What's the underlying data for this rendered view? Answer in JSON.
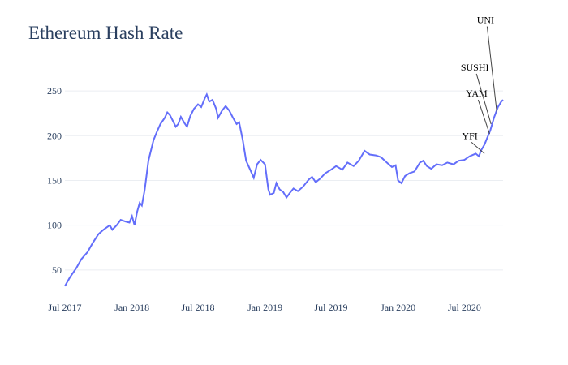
{
  "chart_data": {
    "type": "line",
    "title": "Ethereum Hash Rate",
    "xlabel": "",
    "ylabel": "",
    "x_range": [
      "2017-07-01",
      "2020-10-15"
    ],
    "ylim": [
      20,
      270
    ],
    "grid": true,
    "line_color": "#636efa",
    "x_ticks": [
      {
        "date": "2017-07-01",
        "label": "Jul 2017"
      },
      {
        "date": "2018-01-01",
        "label": "Jan 2018"
      },
      {
        "date": "2018-07-01",
        "label": "Jul 2018"
      },
      {
        "date": "2019-01-01",
        "label": "Jan 2019"
      },
      {
        "date": "2019-07-01",
        "label": "Jul 2019"
      },
      {
        "date": "2020-01-01",
        "label": "Jan 2020"
      },
      {
        "date": "2020-07-01",
        "label": "Jul 2020"
      }
    ],
    "y_ticks": [
      50,
      100,
      150,
      200,
      250
    ],
    "series": [
      {
        "points": [
          [
            "2017-07-01",
            32
          ],
          [
            "2017-07-15",
            42
          ],
          [
            "2017-08-01",
            52
          ],
          [
            "2017-08-15",
            62
          ],
          [
            "2017-09-01",
            70
          ],
          [
            "2017-09-15",
            80
          ],
          [
            "2017-10-01",
            90
          ],
          [
            "2017-10-15",
            95
          ],
          [
            "2017-11-01",
            100
          ],
          [
            "2017-11-08",
            95
          ],
          [
            "2017-11-20",
            100
          ],
          [
            "2017-12-01",
            106
          ],
          [
            "2017-12-15",
            104
          ],
          [
            "2017-12-25",
            103
          ],
          [
            "2018-01-01",
            110
          ],
          [
            "2018-01-08",
            100
          ],
          [
            "2018-01-15",
            115
          ],
          [
            "2018-01-22",
            125
          ],
          [
            "2018-01-28",
            122
          ],
          [
            "2018-02-05",
            140
          ],
          [
            "2018-02-15",
            172
          ],
          [
            "2018-03-01",
            195
          ],
          [
            "2018-03-10",
            204
          ],
          [
            "2018-03-20",
            213
          ],
          [
            "2018-04-01",
            220
          ],
          [
            "2018-04-08",
            226
          ],
          [
            "2018-04-15",
            223
          ],
          [
            "2018-04-25",
            215
          ],
          [
            "2018-05-01",
            210
          ],
          [
            "2018-05-08",
            213
          ],
          [
            "2018-05-15",
            221
          ],
          [
            "2018-05-25",
            214
          ],
          [
            "2018-06-01",
            210
          ],
          [
            "2018-06-10",
            222
          ],
          [
            "2018-06-20",
            230
          ],
          [
            "2018-07-01",
            235
          ],
          [
            "2018-07-10",
            232
          ],
          [
            "2018-07-20",
            242
          ],
          [
            "2018-07-25",
            246
          ],
          [
            "2018-08-01",
            238
          ],
          [
            "2018-08-10",
            240
          ],
          [
            "2018-08-20",
            230
          ],
          [
            "2018-08-25",
            220
          ],
          [
            "2018-09-05",
            228
          ],
          [
            "2018-09-15",
            233
          ],
          [
            "2018-09-25",
            228
          ],
          [
            "2018-10-05",
            220
          ],
          [
            "2018-10-15",
            213
          ],
          [
            "2018-10-22",
            215
          ],
          [
            "2018-11-01",
            195
          ],
          [
            "2018-11-10",
            172
          ],
          [
            "2018-11-20",
            163
          ],
          [
            "2018-12-01",
            153
          ],
          [
            "2018-12-10",
            168
          ],
          [
            "2018-12-20",
            173
          ],
          [
            "2019-01-01",
            168
          ],
          [
            "2019-01-10",
            140
          ],
          [
            "2019-01-15",
            134
          ],
          [
            "2019-01-25",
            136
          ],
          [
            "2019-02-01",
            147
          ],
          [
            "2019-02-10",
            140
          ],
          [
            "2019-02-20",
            137
          ],
          [
            "2019-03-01",
            131
          ],
          [
            "2019-03-10",
            136
          ],
          [
            "2019-03-20",
            141
          ],
          [
            "2019-04-01",
            138
          ],
          [
            "2019-04-15",
            143
          ],
          [
            "2019-05-01",
            151
          ],
          [
            "2019-05-10",
            154
          ],
          [
            "2019-05-20",
            148
          ],
          [
            "2019-06-01",
            152
          ],
          [
            "2019-06-15",
            158
          ],
          [
            "2019-07-01",
            162
          ],
          [
            "2019-07-15",
            166
          ],
          [
            "2019-08-01",
            162
          ],
          [
            "2019-08-15",
            170
          ],
          [
            "2019-09-01",
            166
          ],
          [
            "2019-09-15",
            172
          ],
          [
            "2019-10-01",
            183
          ],
          [
            "2019-10-15",
            179
          ],
          [
            "2019-11-01",
            178
          ],
          [
            "2019-11-15",
            176
          ],
          [
            "2019-12-01",
            170
          ],
          [
            "2019-12-15",
            165
          ],
          [
            "2019-12-25",
            167
          ],
          [
            "2020-01-01",
            150
          ],
          [
            "2020-01-10",
            147
          ],
          [
            "2020-01-20",
            155
          ],
          [
            "2020-02-01",
            158
          ],
          [
            "2020-02-15",
            160
          ],
          [
            "2020-03-01",
            170
          ],
          [
            "2020-03-10",
            172
          ],
          [
            "2020-03-20",
            166
          ],
          [
            "2020-04-01",
            163
          ],
          [
            "2020-04-15",
            168
          ],
          [
            "2020-05-01",
            167
          ],
          [
            "2020-05-15",
            170
          ],
          [
            "2020-06-01",
            168
          ],
          [
            "2020-06-15",
            172
          ],
          [
            "2020-07-01",
            173
          ],
          [
            "2020-07-15",
            177
          ],
          [
            "2020-08-01",
            180
          ],
          [
            "2020-08-10",
            177
          ],
          [
            "2020-08-15",
            183
          ],
          [
            "2020-08-25",
            190
          ],
          [
            "2020-09-01",
            197
          ],
          [
            "2020-09-10",
            206
          ],
          [
            "2020-09-20",
            220
          ],
          [
            "2020-10-01",
            232
          ],
          [
            "2020-10-10",
            238
          ],
          [
            "2020-10-15",
            240
          ]
        ]
      }
    ],
    "annotations": [
      {
        "text": "YFI",
        "date": "2020-08-25",
        "value": 180
      },
      {
        "text": "YAM",
        "date": "2020-09-08",
        "value": 202
      },
      {
        "text": "SUSHI",
        "date": "2020-09-12",
        "value": 213
      },
      {
        "text": "UNI",
        "date": "2020-09-28",
        "value": 226
      }
    ]
  }
}
